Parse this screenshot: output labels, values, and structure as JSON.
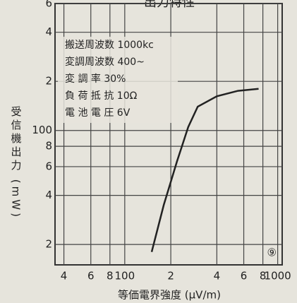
{
  "chart_data": {
    "type": "line",
    "title": "出力特性",
    "xlabel": "等価電界強度 (μV/m)",
    "ylabel": "受信機出力 (mW)",
    "xscale": "log",
    "yscale": "log",
    "grid": true,
    "color": "#222222",
    "xlim": [
      35,
      1070
    ],
    "ylim": [
      15,
      600
    ],
    "xticks": [
      {
        "value": 40,
        "label": "4"
      },
      {
        "value": 60,
        "label": "6"
      },
      {
        "value": 80,
        "label": "8"
      },
      100,
      {
        "value": 200,
        "label": "2"
      },
      {
        "value": 400,
        "label": "4"
      },
      {
        "value": 600,
        "label": "6"
      },
      {
        "value": 800,
        "label": "8"
      },
      1000
    ],
    "yticks": [
      {
        "value": 20,
        "label": "2"
      },
      {
        "value": 40,
        "label": "4"
      },
      {
        "value": 60,
        "label": "6"
      },
      {
        "value": 80,
        "label": "8"
      },
      100,
      {
        "value": 200,
        "label": "2"
      },
      {
        "value": 400,
        "label": "4"
      },
      {
        "value": 600,
        "label": "6"
      }
    ],
    "series": [
      {
        "name": "出力",
        "x": [
          150,
          180,
          220,
          260,
          300,
          400,
          550,
          750
        ],
        "values": [
          18,
          35,
          65,
          105,
          140,
          162,
          175,
          180
        ]
      }
    ],
    "annotations": [
      "搬送周波数 1000kc",
      "変調周波数 400~",
      "変 調 率 30%",
      "負 荷 抵 抗 10Ω",
      "電 池 電 圧 6V"
    ],
    "panel_label": "⑨"
  }
}
